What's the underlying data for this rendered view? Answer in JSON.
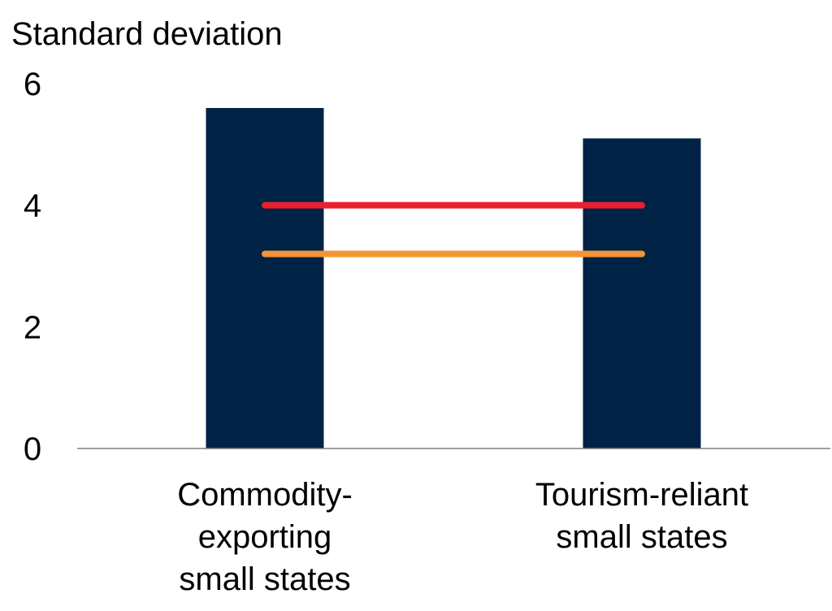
{
  "chart_data": {
    "type": "bar",
    "ylabel": "Standard deviation",
    "categories": [
      "Commodity-exporting small states",
      "Tourism-reliant small states"
    ],
    "category_label_lines": [
      [
        "Commodity-",
        "exporting",
        "small states"
      ],
      [
        "Tourism-reliant",
        "small states"
      ]
    ],
    "values": [
      5.6,
      5.1
    ],
    "reference_lines": [
      {
        "value": 4.0,
        "color": "#e8202f"
      },
      {
        "value": 3.2,
        "color": "#f39436"
      }
    ],
    "ylim": [
      0,
      6
    ],
    "yticks": [
      "0",
      "2",
      "4",
      "6"
    ],
    "grid": false,
    "legend": "none"
  },
  "colors": {
    "bar": "#002244",
    "axis": "#7f7f7f"
  }
}
